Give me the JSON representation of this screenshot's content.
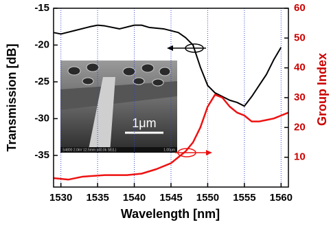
{
  "chart_data": {
    "type": "line",
    "xlabel": "Wavelength [nm]",
    "ylabel": "Transmission [dB]",
    "y2label": "Group Index",
    "xlim": [
      1529,
      1561
    ],
    "xticks": [
      1530,
      1535,
      1540,
      1545,
      1550,
      1555,
      1560
    ],
    "ylim": [
      -39.3,
      -15
    ],
    "yticks": [
      -35,
      -30,
      -25,
      -20,
      -15
    ],
    "y2lim": [
      0,
      60
    ],
    "y2ticks": [
      10,
      20,
      30,
      40,
      50,
      60
    ],
    "grid": true,
    "y2color": "#cc0000",
    "series": [
      {
        "color": "#000000",
        "x": [
          1529,
          1530,
          1532,
          1534,
          1535,
          1536,
          1538,
          1540,
          1541,
          1542,
          1544,
          1546,
          1547,
          1548,
          1549,
          1550,
          1551,
          1552,
          1553,
          1554,
          1555,
          1556,
          1557,
          1558,
          1559,
          1560
        ],
        "values": [
          -18.3,
          -18.5,
          -18,
          -17.5,
          -17.3,
          -17.4,
          -17.8,
          -17.3,
          -17.3,
          -17.6,
          -17.8,
          -18.3,
          -19,
          -20,
          -23,
          -25.5,
          -26.5,
          -27,
          -27.5,
          -27.8,
          -28.3,
          -27,
          -25.5,
          -24,
          -22,
          -20.3
        ]
      },
      {
        "color": "#ee1111",
        "axis": "y2",
        "x": [
          1529,
          1531,
          1533,
          1536,
          1539,
          1541,
          1543,
          1545,
          1547,
          1548,
          1549,
          1550,
          1551,
          1552,
          1553,
          1554,
          1555,
          1556,
          1557,
          1558,
          1559,
          1560,
          1561
        ],
        "values": [
          3,
          2.5,
          3.5,
          4,
          4,
          4.5,
          6,
          8,
          12,
          15,
          20,
          27,
          31,
          30,
          27,
          25,
          24,
          22,
          22,
          22.5,
          23,
          24,
          25
        ]
      }
    ],
    "annotations": [
      "1μm",
      "S4800 2.0kV 12.5mm x40.0k SE(L)",
      "1.00μm"
    ]
  }
}
